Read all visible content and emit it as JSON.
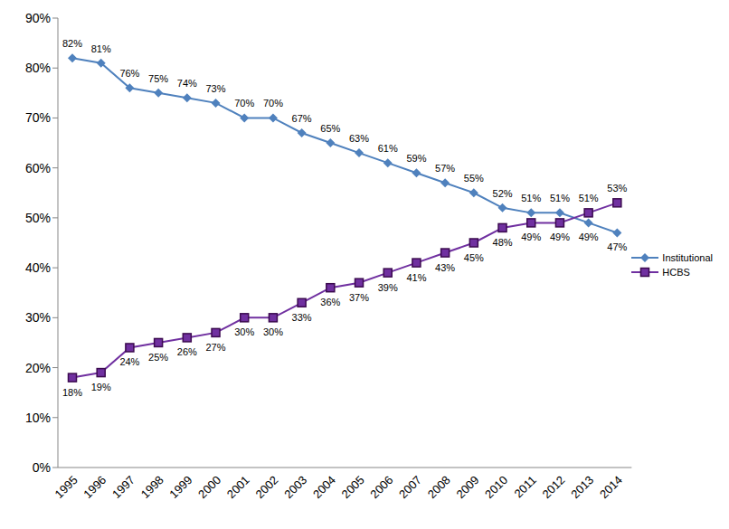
{
  "chart_data": {
    "type": "line",
    "categories": [
      "1995",
      "1996",
      "1997",
      "1998",
      "1999",
      "2000",
      "2001",
      "2002",
      "2003",
      "2004",
      "2005",
      "2006",
      "2007",
      "2008",
      "2009",
      "2010",
      "2011",
      "2012",
      "2013",
      "2014"
    ],
    "series": [
      {
        "name": "Institutional",
        "color": "#4f81bd",
        "marker": "diamond",
        "values": [
          82,
          81,
          76,
          75,
          74,
          73,
          70,
          70,
          67,
          65,
          63,
          61,
          59,
          57,
          55,
          52,
          51,
          51,
          49,
          47
        ],
        "value_labels": [
          "82%",
          "81%",
          "76%",
          "75%",
          "74%",
          "73%",
          "70%",
          "70%",
          "67%",
          "65%",
          "63%",
          "61%",
          "59%",
          "57%",
          "55%",
          "52%",
          "51%",
          "51%",
          "49%",
          "47%"
        ]
      },
      {
        "name": "HCBS",
        "color": "#7030a0",
        "marker": "square",
        "values": [
          18,
          19,
          24,
          25,
          26,
          27,
          30,
          30,
          33,
          36,
          37,
          39,
          41,
          43,
          45,
          48,
          49,
          49,
          51,
          53
        ],
        "value_labels": [
          "18%",
          "19%",
          "24%",
          "25%",
          "26%",
          "27%",
          "30%",
          "30%",
          "33%",
          "36%",
          "37%",
          "39%",
          "41%",
          "43%",
          "45%",
          "48%",
          "49%",
          "49%",
          "51%",
          "53%"
        ]
      }
    ],
    "ylim": [
      0,
      90
    ],
    "yticks": [
      {
        "value": 0,
        "label": "0%"
      },
      {
        "value": 10,
        "label": "10%"
      },
      {
        "value": 20,
        "label": "20%"
      },
      {
        "value": 30,
        "label": "30%"
      },
      {
        "value": 40,
        "label": "40%"
      },
      {
        "value": 50,
        "label": "50%"
      },
      {
        "value": 60,
        "label": "60%"
      },
      {
        "value": 70,
        "label": "70%"
      },
      {
        "value": 80,
        "label": "80%"
      },
      {
        "value": 90,
        "label": "90%"
      }
    ],
    "grid": false,
    "legend": "right",
    "data_labels": true
  }
}
